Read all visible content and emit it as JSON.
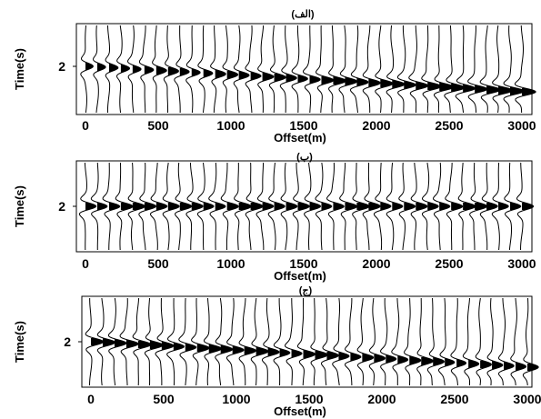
{
  "chart_data": [
    {
      "type": "seismic-wiggle",
      "title": "(الف)",
      "xlabel": "Offset(m)",
      "ylabel": "Time(s)",
      "xticks": [
        0,
        500,
        1000,
        1500,
        2000,
        2500,
        3000
      ],
      "yticks": [
        2
      ],
      "xlim": [
        0,
        3000
      ],
      "traces": 38,
      "event_time_start": 2.0,
      "event_time_end": 2.2,
      "amplitude_start": 0.45,
      "amplitude_end": 0.75
    },
    {
      "type": "seismic-wiggle",
      "title": "(ب)",
      "xlabel": "Offset(m)",
      "ylabel": "Time(s)",
      "xticks": [
        0,
        500,
        1000,
        1500,
        2000,
        2500,
        3000
      ],
      "yticks": [
        2
      ],
      "xlim": [
        0,
        3000
      ],
      "traces": 38,
      "event_time_start": 2.0,
      "event_time_end": 2.0,
      "amplitude_start": 0.6,
      "amplitude_end": 0.6
    },
    {
      "type": "seismic-wiggle",
      "title": "(ج)",
      "xlabel": "Offset(m)",
      "ylabel": "Time(s)",
      "xticks": [
        0,
        500,
        1000,
        1500,
        2000,
        2500,
        3000
      ],
      "yticks": [
        2
      ],
      "xlim": [
        0,
        3000
      ],
      "traces": 38,
      "event_time_start": 2.0,
      "event_time_end": 2.2,
      "amplitude_start": 0.65,
      "amplitude_end": 0.55
    }
  ],
  "colors": {
    "wiggle": "#000000",
    "axis": "#000000",
    "background": "#ffffff"
  }
}
